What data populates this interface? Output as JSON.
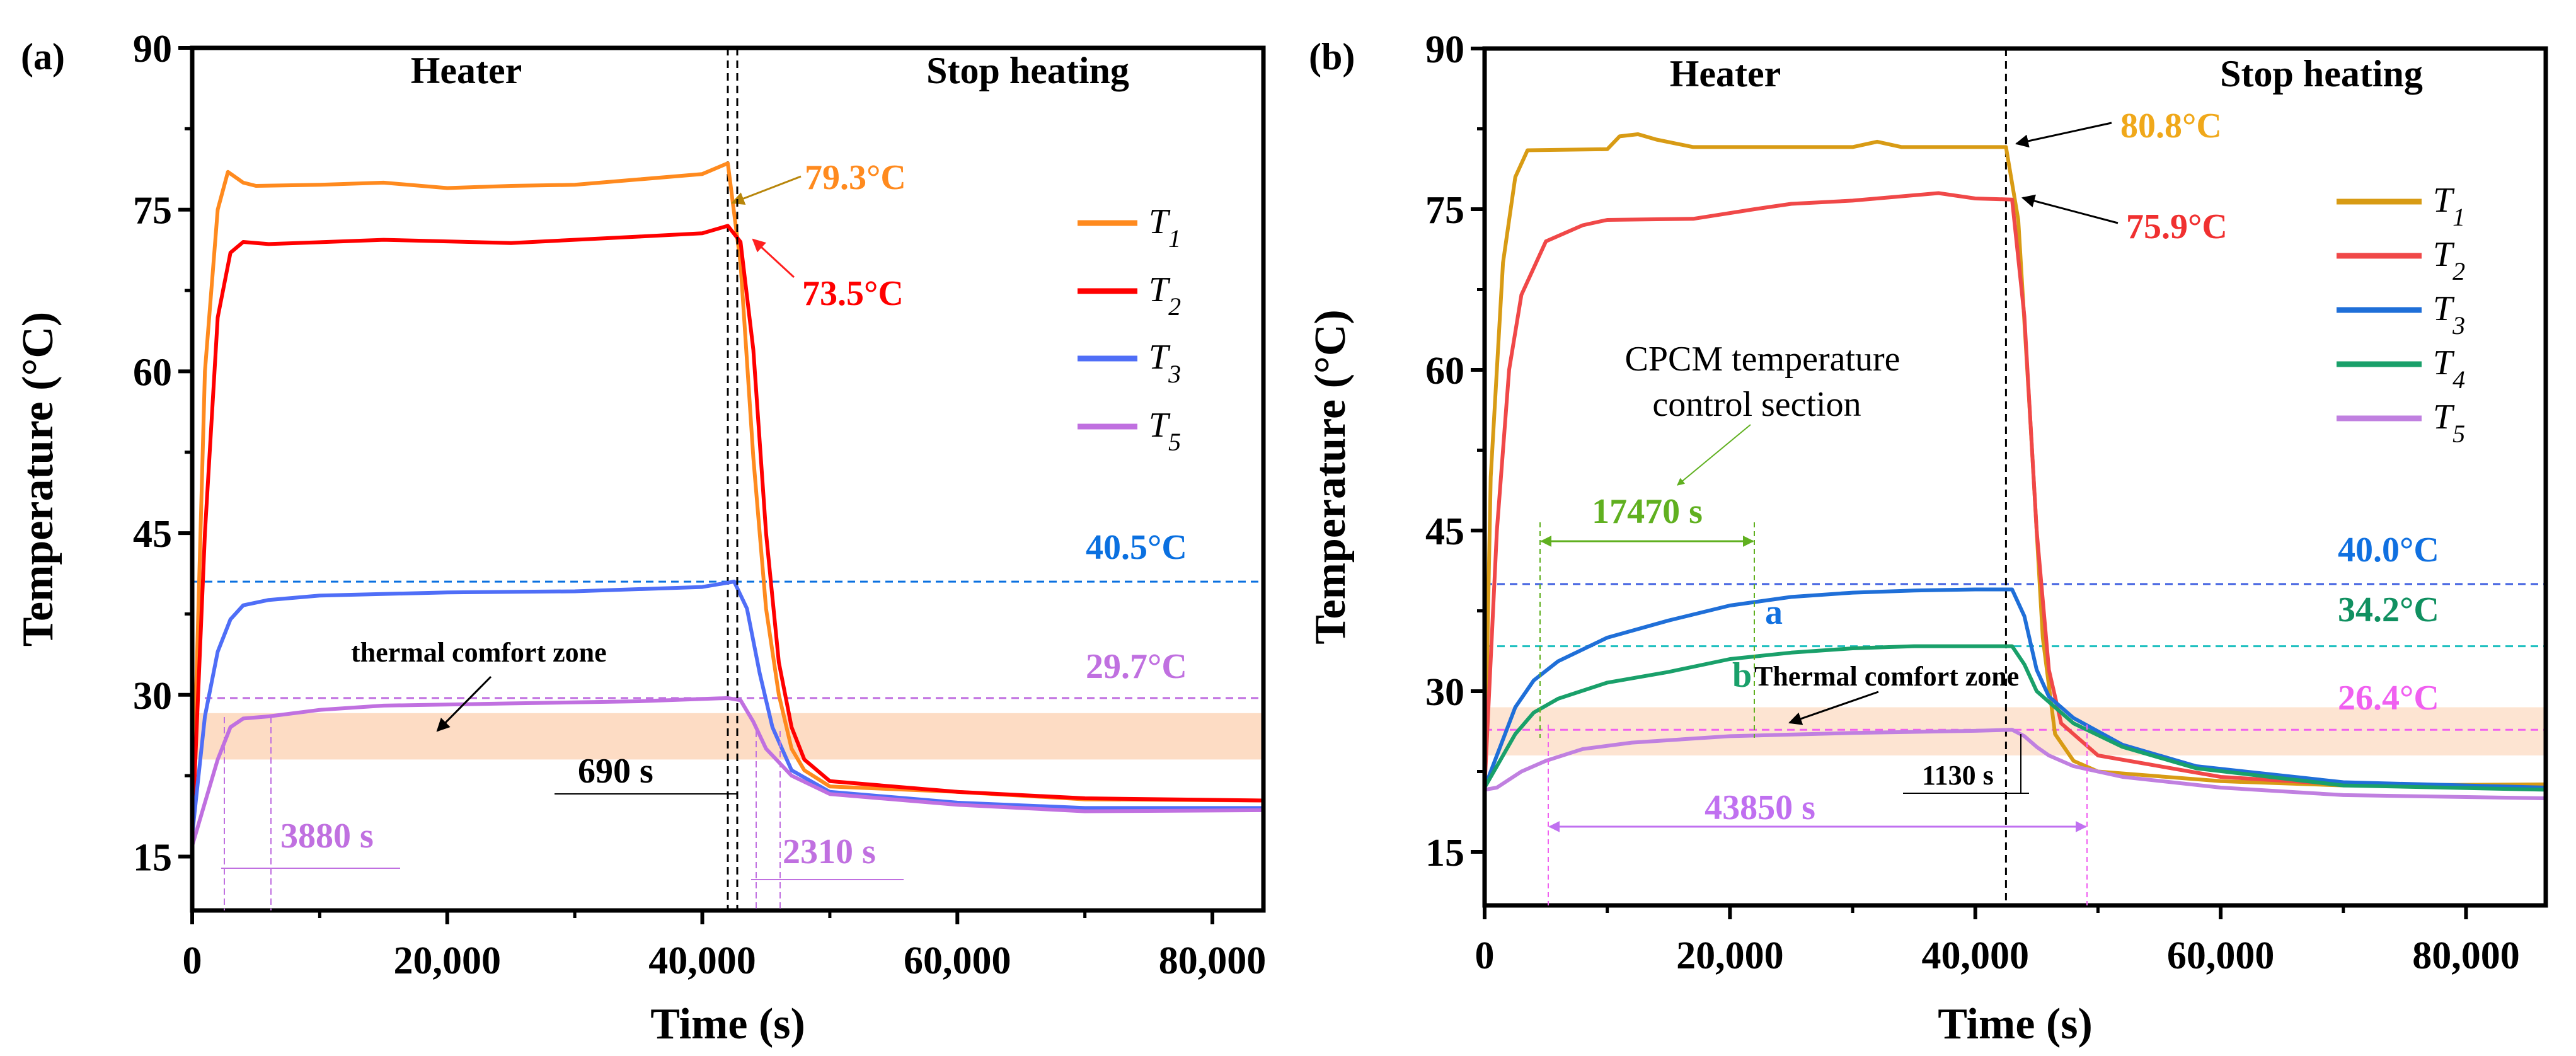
{
  "chart_data": [
    {
      "type": "line",
      "panel_label": "(a)",
      "xlabel": "Time (s)",
      "ylabel": "Temperature (°C)",
      "xlim": [
        0,
        84000
      ],
      "ylim": [
        10,
        90
      ],
      "xticks": [
        "0",
        "20,000",
        "40,000",
        "60,000",
        "80,000"
      ],
      "xtick_values": [
        0,
        20000,
        40000,
        60000,
        80000
      ],
      "yticks": [
        "15",
        "30",
        "45",
        "60",
        "75",
        "90"
      ],
      "ytick_values": [
        15,
        30,
        45,
        60,
        75,
        90
      ],
      "legend_position": "right",
      "regions": {
        "heater": "Heater",
        "stop": "Stop heating",
        "switch_time": 42000
      },
      "comfort_zone": {
        "label": "thermal comfort zone",
        "range": [
          24,
          28.3
        ],
        "color": "#FDDCC4"
      },
      "reference_lines": [
        {
          "value": 40.5,
          "label": "40.5°C",
          "color": "#0A70E0"
        },
        {
          "value": 29.7,
          "label": "29.7°C",
          "color": "#C070E0"
        }
      ],
      "annotations": {
        "t1_peak": "79.3°C",
        "t2_peak": "73.5°C",
        "lag": "690 s",
        "rise": "3880 s",
        "fall": "2310 s"
      },
      "series": [
        {
          "name": "T",
          "sub": "1",
          "color": "#FF8A1E",
          "points": [
            [
              0,
              17
            ],
            [
              1000,
              60
            ],
            [
              2000,
              75
            ],
            [
              2800,
              78.5
            ],
            [
              4000,
              77.5
            ],
            [
              5000,
              77.2
            ],
            [
              10000,
              77.3
            ],
            [
              15000,
              77.5
            ],
            [
              20000,
              77
            ],
            [
              25000,
              77.2
            ],
            [
              30000,
              77.3
            ],
            [
              35000,
              77.8
            ],
            [
              40000,
              78.3
            ],
            [
              42000,
              79.3
            ],
            [
              43000,
              70
            ],
            [
              44000,
              52
            ],
            [
              45000,
              38
            ],
            [
              46000,
              30
            ],
            [
              47000,
              25
            ],
            [
              48000,
              23
            ],
            [
              50000,
              21.5
            ],
            [
              60000,
              21
            ],
            [
              70000,
              20.3
            ],
            [
              84000,
              20.2
            ]
          ]
        },
        {
          "name": "T",
          "sub": "2",
          "color": "#FF0000",
          "points": [
            [
              0,
              17
            ],
            [
              1000,
              45
            ],
            [
              2000,
              65
            ],
            [
              3000,
              71
            ],
            [
              4000,
              72
            ],
            [
              6000,
              71.8
            ],
            [
              15000,
              72.2
            ],
            [
              25000,
              71.9
            ],
            [
              35000,
              72.5
            ],
            [
              40000,
              72.8
            ],
            [
              42000,
              73.5
            ],
            [
              43000,
              72
            ],
            [
              44000,
              62
            ],
            [
              45000,
              45
            ],
            [
              46000,
              33
            ],
            [
              47000,
              27
            ],
            [
              48000,
              24
            ],
            [
              50000,
              22
            ],
            [
              60000,
              21
            ],
            [
              70000,
              20.4
            ],
            [
              84000,
              20.2
            ]
          ]
        },
        {
          "name": "T",
          "sub": "3",
          "color": "#4F6EF7",
          "points": [
            [
              0,
              17
            ],
            [
              1000,
              28
            ],
            [
              2000,
              34
            ],
            [
              3000,
              37
            ],
            [
              4000,
              38.3
            ],
            [
              6000,
              38.8
            ],
            [
              10000,
              39.2
            ],
            [
              20000,
              39.5
            ],
            [
              30000,
              39.6
            ],
            [
              40000,
              40
            ],
            [
              42500,
              40.5
            ],
            [
              43500,
              38
            ],
            [
              44500,
              32
            ],
            [
              45500,
              27
            ],
            [
              47000,
              23
            ],
            [
              50000,
              21
            ],
            [
              60000,
              20
            ],
            [
              70000,
              19.5
            ],
            [
              84000,
              19.5
            ]
          ]
        },
        {
          "name": "T",
          "sub": "5",
          "color": "#C070E0",
          "points": [
            [
              0,
              16
            ],
            [
              1000,
              20
            ],
            [
              2000,
              24
            ],
            [
              3000,
              27
            ],
            [
              4000,
              27.8
            ],
            [
              6000,
              28
            ],
            [
              10000,
              28.6
            ],
            [
              15000,
              29
            ],
            [
              25000,
              29.2
            ],
            [
              35000,
              29.4
            ],
            [
              42000,
              29.7
            ],
            [
              43000,
              29.5
            ],
            [
              44000,
              27.5
            ],
            [
              45000,
              25
            ],
            [
              47000,
              22.5
            ],
            [
              50000,
              20.8
            ],
            [
              60000,
              19.8
            ],
            [
              70000,
              19.2
            ],
            [
              84000,
              19.3
            ]
          ]
        }
      ]
    },
    {
      "type": "line",
      "panel_label": "(b)",
      "xlabel": "Time (s)",
      "ylabel": "Temperature (°C)",
      "xlim": [
        0,
        86500
      ],
      "ylim": [
        10,
        90
      ],
      "xticks": [
        "0",
        "20,000",
        "40,000",
        "60,000",
        "80,000"
      ],
      "xtick_values": [
        0,
        20000,
        40000,
        60000,
        80000
      ],
      "yticks": [
        "15",
        "30",
        "45",
        "60",
        "75",
        "90"
      ],
      "ytick_values": [
        15,
        30,
        45,
        60,
        75,
        90
      ],
      "legend_position": "right",
      "regions": {
        "heater": "Heater",
        "stop": "Stop heating",
        "switch_time": 42500
      },
      "comfort_zone": {
        "label": "Thermal comfort zone",
        "range": [
          24,
          28.5
        ],
        "color": "#FDE4D2"
      },
      "reference_lines": [
        {
          "value": 40.0,
          "label": "40.0°C",
          "color": "#4060E0",
          "text_color": "#1070E0"
        },
        {
          "value": 34.2,
          "label": "34.2°C",
          "color": "#20C0C0",
          "text_color": "#109060"
        },
        {
          "value": 26.4,
          "label": "26.4°C",
          "color": "#F060F0",
          "text_color": "#F060F0"
        }
      ],
      "annotations": {
        "t1_peak": "80.8°C",
        "t2_peak": "75.9°C",
        "cpcm_line1": "CPCM temperature",
        "cpcm_line2": "control section",
        "cpcm_duration": "17470 s",
        "point_a": "a",
        "point_b": "b",
        "lag": "1130 s",
        "comfort_duration": "43850 s"
      },
      "series": [
        {
          "name": "T",
          "sub": "1",
          "color": "#D89B14",
          "points": [
            [
              0,
              21
            ],
            [
              500,
              50
            ],
            [
              1500,
              70
            ],
            [
              2500,
              78
            ],
            [
              3500,
              80.5
            ],
            [
              10000,
              80.6
            ],
            [
              11000,
              81.8
            ],
            [
              12500,
              82
            ],
            [
              14000,
              81.5
            ],
            [
              17000,
              80.8
            ],
            [
              30000,
              80.8
            ],
            [
              32000,
              81.3
            ],
            [
              34000,
              80.8
            ],
            [
              42500,
              80.8
            ],
            [
              43500,
              74
            ],
            [
              44500,
              55
            ],
            [
              45500,
              35
            ],
            [
              46500,
              26
            ],
            [
              48000,
              23.5
            ],
            [
              50000,
              22.5
            ],
            [
              60000,
              21.6
            ],
            [
              70000,
              21.2
            ],
            [
              86500,
              21.3
            ]
          ]
        },
        {
          "name": "T",
          "sub": "2",
          "color": "#F04848",
          "points": [
            [
              0,
              21
            ],
            [
              1000,
              45
            ],
            [
              2000,
              60
            ],
            [
              3000,
              67
            ],
            [
              5000,
              72
            ],
            [
              8000,
              73.5
            ],
            [
              10000,
              74
            ],
            [
              17000,
              74.1
            ],
            [
              22000,
              75
            ],
            [
              25000,
              75.5
            ],
            [
              30000,
              75.8
            ],
            [
              35000,
              76.3
            ],
            [
              37000,
              76.5
            ],
            [
              40000,
              76
            ],
            [
              43000,
              75.9
            ],
            [
              44000,
              65
            ],
            [
              45000,
              45
            ],
            [
              46000,
              32
            ],
            [
              47000,
              27
            ],
            [
              50000,
              24
            ],
            [
              60000,
              22
            ],
            [
              70000,
              21.3
            ],
            [
              86500,
              21
            ]
          ]
        },
        {
          "name": "T",
          "sub": "3",
          "color": "#1F6FD8",
          "points": [
            [
              0,
              21
            ],
            [
              1000,
              24
            ],
            [
              2500,
              28.5
            ],
            [
              4000,
              31
            ],
            [
              6000,
              32.8
            ],
            [
              10000,
              35
            ],
            [
              15000,
              36.6
            ],
            [
              20000,
              38
            ],
            [
              25000,
              38.8
            ],
            [
              30000,
              39.2
            ],
            [
              35000,
              39.4
            ],
            [
              40000,
              39.5
            ],
            [
              43000,
              39.5
            ],
            [
              44000,
              37
            ],
            [
              45000,
              32
            ],
            [
              46000,
              29.5
            ],
            [
              48000,
              27.5
            ],
            [
              52000,
              25
            ],
            [
              58000,
              23
            ],
            [
              70000,
              21.5
            ],
            [
              86500,
              21
            ]
          ]
        },
        {
          "name": "T",
          "sub": "4",
          "color": "#19A06A",
          "points": [
            [
              0,
              21
            ],
            [
              1000,
              23
            ],
            [
              2500,
              26
            ],
            [
              4000,
              28
            ],
            [
              6000,
              29.3
            ],
            [
              10000,
              30.8
            ],
            [
              15000,
              31.8
            ],
            [
              20000,
              33
            ],
            [
              25000,
              33.6
            ],
            [
              30000,
              34
            ],
            [
              35000,
              34.2
            ],
            [
              43000,
              34.2
            ],
            [
              44000,
              32.5
            ],
            [
              45000,
              30
            ],
            [
              46000,
              29
            ],
            [
              48000,
              27
            ],
            [
              52000,
              24.8
            ],
            [
              58000,
              22.8
            ],
            [
              70000,
              21.2
            ],
            [
              86500,
              20.8
            ]
          ]
        },
        {
          "name": "T",
          "sub": "5",
          "color": "#C080E0",
          "points": [
            [
              0,
              20.8
            ],
            [
              1000,
              21
            ],
            [
              3000,
              22.5
            ],
            [
              5000,
              23.5
            ],
            [
              8000,
              24.6
            ],
            [
              12000,
              25.2
            ],
            [
              20000,
              25.8
            ],
            [
              30000,
              26.1
            ],
            [
              40000,
              26.3
            ],
            [
              43000,
              26.4
            ],
            [
              44000,
              25.8
            ],
            [
              45000,
              24.8
            ],
            [
              46000,
              24
            ],
            [
              48000,
              23
            ],
            [
              52000,
              22
            ],
            [
              60000,
              21
            ],
            [
              70000,
              20.3
            ],
            [
              86500,
              20
            ]
          ]
        }
      ]
    }
  ]
}
